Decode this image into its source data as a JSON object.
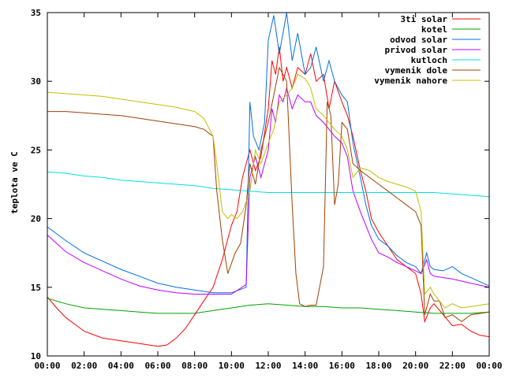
{
  "chart_data": {
    "type": "line",
    "title": "",
    "xlabel": "",
    "ylabel": "teplota ve C",
    "xlim": [
      0,
      24
    ],
    "ylim": [
      10,
      35
    ],
    "xticks": [
      "00:00",
      "02:00",
      "04:00",
      "06:00",
      "08:00",
      "10:00",
      "12:00",
      "14:00",
      "16:00",
      "18:00",
      "20:00",
      "22:00",
      "00:00"
    ],
    "yticks": [
      "10",
      "15",
      "20",
      "25",
      "30",
      "35"
    ],
    "grid": false,
    "legend_position": "top-right",
    "series": [
      {
        "name": "3ti solar",
        "color": "#ff0000",
        "points": [
          [
            0,
            14.3
          ],
          [
            0.5,
            13.5
          ],
          [
            1,
            12.8
          ],
          [
            1.5,
            12.3
          ],
          [
            2,
            11.8
          ],
          [
            3,
            11.3
          ],
          [
            4,
            11.1
          ],
          [
            5,
            10.9
          ],
          [
            6,
            10.7
          ],
          [
            6.5,
            10.8
          ],
          [
            7,
            11.3
          ],
          [
            7.5,
            12.0
          ],
          [
            8,
            13.0
          ],
          [
            8.5,
            14.0
          ],
          [
            9,
            15.0
          ],
          [
            9.5,
            17.0
          ],
          [
            10,
            19.5
          ],
          [
            10.3,
            20.5
          ],
          [
            10.6,
            23.0
          ],
          [
            11,
            25.0
          ],
          [
            11.3,
            23.5
          ],
          [
            11.6,
            24.5
          ],
          [
            12,
            28.0
          ],
          [
            12.2,
            31.5
          ],
          [
            12.4,
            30.5
          ],
          [
            12.6,
            32.5
          ],
          [
            12.8,
            30.0
          ],
          [
            13,
            31.0
          ],
          [
            13.3,
            29.5
          ],
          [
            13.6,
            31.0
          ],
          [
            14,
            30.5
          ],
          [
            14.3,
            32.0
          ],
          [
            14.6,
            30.0
          ],
          [
            15,
            30.5
          ],
          [
            15.3,
            28.0
          ],
          [
            15.6,
            30.0
          ],
          [
            16,
            28.5
          ],
          [
            16.3,
            27.5
          ],
          [
            16.6,
            26.0
          ],
          [
            17,
            23.5
          ],
          [
            17.3,
            22.0
          ],
          [
            17.6,
            20.0
          ],
          [
            18,
            19.0
          ],
          [
            18.5,
            18.0
          ],
          [
            19,
            17.0
          ],
          [
            19.5,
            16.5
          ],
          [
            20,
            16.0
          ],
          [
            20.3,
            14.5
          ],
          [
            20.5,
            12.5
          ],
          [
            20.8,
            13.5
          ],
          [
            21,
            13.8
          ],
          [
            21.5,
            13.0
          ],
          [
            22,
            12.2
          ],
          [
            22.5,
            12.3
          ],
          [
            23,
            11.8
          ],
          [
            23.5,
            11.5
          ],
          [
            24,
            11.4
          ]
        ]
      },
      {
        "name": "kotel",
        "color": "#00a000",
        "points": [
          [
            0,
            14.2
          ],
          [
            1,
            13.8
          ],
          [
            2,
            13.5
          ],
          [
            3,
            13.4
          ],
          [
            4,
            13.3
          ],
          [
            5,
            13.2
          ],
          [
            6,
            13.1
          ],
          [
            7,
            13.1
          ],
          [
            8,
            13.1
          ],
          [
            9,
            13.3
          ],
          [
            10,
            13.5
          ],
          [
            11,
            13.7
          ],
          [
            12,
            13.8
          ],
          [
            13,
            13.7
          ],
          [
            14,
            13.6
          ],
          [
            15,
            13.6
          ],
          [
            16,
            13.5
          ],
          [
            17,
            13.5
          ],
          [
            18,
            13.4
          ],
          [
            19,
            13.3
          ],
          [
            20,
            13.2
          ],
          [
            21,
            13.1
          ],
          [
            22,
            13.1
          ],
          [
            23,
            13.1
          ],
          [
            24,
            13.2
          ]
        ]
      },
      {
        "name": "odvod solar",
        "color": "#0070e0",
        "points": [
          [
            0,
            19.4
          ],
          [
            1,
            18.4
          ],
          [
            2,
            17.5
          ],
          [
            3,
            16.9
          ],
          [
            4,
            16.3
          ],
          [
            5,
            15.8
          ],
          [
            6,
            15.3
          ],
          [
            7,
            15.0
          ],
          [
            8,
            14.8
          ],
          [
            9,
            14.6
          ],
          [
            10,
            14.6
          ],
          [
            10.8,
            15.0
          ],
          [
            11,
            28.5
          ],
          [
            11.2,
            26.0
          ],
          [
            11.5,
            25.0
          ],
          [
            11.8,
            27.0
          ],
          [
            12,
            33.0
          ],
          [
            12.3,
            34.8
          ],
          [
            12.6,
            32.0
          ],
          [
            13,
            35.0
          ],
          [
            13.3,
            31.5
          ],
          [
            13.6,
            33.5
          ],
          [
            14,
            30.5
          ],
          [
            14.3,
            31.0
          ],
          [
            14.6,
            32.5
          ],
          [
            15,
            30.0
          ],
          [
            15.3,
            31.5
          ],
          [
            15.6,
            30.0
          ],
          [
            16,
            29.0
          ],
          [
            16.3,
            28.5
          ],
          [
            16.6,
            25.5
          ],
          [
            17,
            23.0
          ],
          [
            17.3,
            21.0
          ],
          [
            17.6,
            19.5
          ],
          [
            18,
            18.5
          ],
          [
            18.5,
            18.0
          ],
          [
            19,
            17.3
          ],
          [
            19.5,
            16.8
          ],
          [
            20,
            16.5
          ],
          [
            20.3,
            16.0
          ],
          [
            20.6,
            17.5
          ],
          [
            20.8,
            16.5
          ],
          [
            21,
            16.3
          ],
          [
            21.5,
            16.2
          ],
          [
            22,
            16.5
          ],
          [
            22.5,
            16.0
          ],
          [
            23,
            15.7
          ],
          [
            23.5,
            15.4
          ],
          [
            24,
            15.1
          ]
        ]
      },
      {
        "name": "privod solar",
        "color": "#c000ff",
        "points": [
          [
            0,
            18.8
          ],
          [
            1,
            17.6
          ],
          [
            2,
            16.8
          ],
          [
            3,
            16.2
          ],
          [
            4,
            15.6
          ],
          [
            5,
            15.1
          ],
          [
            6,
            14.8
          ],
          [
            7,
            14.6
          ],
          [
            8,
            14.5
          ],
          [
            9,
            14.5
          ],
          [
            10,
            14.5
          ],
          [
            10.8,
            15.2
          ],
          [
            11,
            23.0
          ],
          [
            11.3,
            24.5
          ],
          [
            11.6,
            23.0
          ],
          [
            12,
            25.0
          ],
          [
            12.2,
            28.0
          ],
          [
            12.4,
            27.0
          ],
          [
            12.6,
            29.0
          ],
          [
            12.8,
            28.5
          ],
          [
            13,
            29.5
          ],
          [
            13.3,
            28.0
          ],
          [
            13.6,
            29.0
          ],
          [
            14,
            28.5
          ],
          [
            14.3,
            28.5
          ],
          [
            14.6,
            27.5
          ],
          [
            15,
            27.0
          ],
          [
            15.3,
            26.5
          ],
          [
            15.6,
            26.0
          ],
          [
            16,
            25.5
          ],
          [
            16.3,
            24.5
          ],
          [
            16.6,
            22.0
          ],
          [
            17,
            20.5
          ],
          [
            17.3,
            19.5
          ],
          [
            17.6,
            18.5
          ],
          [
            18,
            17.5
          ],
          [
            18.5,
            17.2
          ],
          [
            19,
            16.8
          ],
          [
            19.5,
            16.5
          ],
          [
            20,
            16.2
          ],
          [
            20.3,
            16.0
          ],
          [
            20.6,
            17.0
          ],
          [
            20.8,
            16.0
          ],
          [
            21,
            15.8
          ],
          [
            22,
            15.6
          ],
          [
            23,
            15.3
          ],
          [
            24,
            15.0
          ]
        ]
      },
      {
        "name": "kutloch",
        "color": "#00e0e0",
        "points": [
          [
            0,
            23.4
          ],
          [
            1,
            23.3
          ],
          [
            2,
            23.1
          ],
          [
            3,
            23.0
          ],
          [
            4,
            22.8
          ],
          [
            5,
            22.7
          ],
          [
            6,
            22.6
          ],
          [
            7,
            22.5
          ],
          [
            8,
            22.4
          ],
          [
            9,
            22.2
          ],
          [
            10,
            22.1
          ],
          [
            11,
            22.0
          ],
          [
            12,
            21.9
          ],
          [
            13,
            21.9
          ],
          [
            14,
            21.9
          ],
          [
            15,
            21.9
          ],
          [
            16,
            21.9
          ],
          [
            17,
            21.9
          ],
          [
            18,
            21.9
          ],
          [
            19,
            21.9
          ],
          [
            20,
            21.9
          ],
          [
            21,
            21.9
          ],
          [
            22,
            21.8
          ],
          [
            23,
            21.7
          ],
          [
            24,
            21.6
          ]
        ]
      },
      {
        "name": "vymenik dole",
        "color": "#a04000",
        "points": [
          [
            0,
            27.8
          ],
          [
            1,
            27.8
          ],
          [
            2,
            27.7
          ],
          [
            3,
            27.6
          ],
          [
            4,
            27.5
          ],
          [
            5,
            27.3
          ],
          [
            6,
            27.1
          ],
          [
            7,
            26.9
          ],
          [
            8,
            26.7
          ],
          [
            8.5,
            26.5
          ],
          [
            9,
            26.0
          ],
          [
            9.2,
            22.0
          ],
          [
            9.5,
            18.5
          ],
          [
            9.8,
            16.0
          ],
          [
            10.2,
            17.5
          ],
          [
            10.5,
            18.2
          ],
          [
            10.8,
            21.0
          ],
          [
            11,
            24.0
          ],
          [
            11.3,
            22.5
          ],
          [
            11.6,
            25.0
          ],
          [
            12,
            27.0
          ],
          [
            12.3,
            29.0
          ],
          [
            12.6,
            31.0
          ],
          [
            13,
            30.0
          ],
          [
            13.3,
            21.0
          ],
          [
            13.5,
            16.0
          ],
          [
            13.7,
            13.8
          ],
          [
            14,
            13.6
          ],
          [
            14.3,
            13.7
          ],
          [
            14.6,
            13.7
          ],
          [
            15,
            16.5
          ],
          [
            15.2,
            28.5
          ],
          [
            15.4,
            27.5
          ],
          [
            15.6,
            21.0
          ],
          [
            15.8,
            22.5
          ],
          [
            16,
            27.0
          ],
          [
            16.3,
            26.5
          ],
          [
            16.6,
            24.0
          ],
          [
            17,
            23.5
          ],
          [
            17.5,
            23.0
          ],
          [
            18,
            22.5
          ],
          [
            18.5,
            22.0
          ],
          [
            19,
            21.5
          ],
          [
            19.5,
            21.0
          ],
          [
            20,
            20.5
          ],
          [
            20.3,
            19.5
          ],
          [
            20.5,
            13.0
          ],
          [
            20.8,
            14.5
          ],
          [
            21,
            14.0
          ],
          [
            21.3,
            14.0
          ],
          [
            21.6,
            12.8
          ],
          [
            22,
            13.0
          ],
          [
            22.5,
            12.5
          ],
          [
            23,
            13.0
          ],
          [
            24,
            13.2
          ]
        ]
      },
      {
        "name": "vymenik nahore",
        "color": "#c0c000",
        "points": [
          [
            0,
            29.2
          ],
          [
            1,
            29.1
          ],
          [
            2,
            29.0
          ],
          [
            3,
            28.9
          ],
          [
            4,
            28.7
          ],
          [
            5,
            28.5
          ],
          [
            6,
            28.3
          ],
          [
            7,
            28.1
          ],
          [
            8,
            27.8
          ],
          [
            8.5,
            27.3
          ],
          [
            9,
            26.0
          ],
          [
            9.2,
            24.0
          ],
          [
            9.5,
            20.5
          ],
          [
            9.8,
            20.0
          ],
          [
            10,
            20.3
          ],
          [
            10.3,
            20.0
          ],
          [
            10.6,
            20.5
          ],
          [
            11,
            22.0
          ],
          [
            11.3,
            25.0
          ],
          [
            11.6,
            24.0
          ],
          [
            12,
            25.5
          ],
          [
            12.3,
            26.5
          ],
          [
            12.6,
            28.5
          ],
          [
            13,
            29.0
          ],
          [
            13.3,
            29.5
          ],
          [
            13.6,
            30.5
          ],
          [
            14,
            30.2
          ],
          [
            14.3,
            29.5
          ],
          [
            14.6,
            28.0
          ],
          [
            15,
            27.5
          ],
          [
            15.3,
            27.0
          ],
          [
            15.6,
            26.5
          ],
          [
            16,
            26.0
          ],
          [
            16.3,
            25.0
          ],
          [
            16.6,
            23.0
          ],
          [
            17,
            23.7
          ],
          [
            17.5,
            23.5
          ],
          [
            18,
            23.0
          ],
          [
            18.5,
            22.7
          ],
          [
            19,
            22.5
          ],
          [
            19.5,
            22.3
          ],
          [
            20,
            22.0
          ],
          [
            20.3,
            20.5
          ],
          [
            20.5,
            14.5
          ],
          [
            20.8,
            15.0
          ],
          [
            21,
            14.5
          ],
          [
            21.3,
            14.0
          ],
          [
            21.6,
            13.5
          ],
          [
            22,
            13.8
          ],
          [
            22.5,
            13.5
          ],
          [
            23,
            13.6
          ],
          [
            24,
            13.8
          ]
        ]
      }
    ]
  }
}
